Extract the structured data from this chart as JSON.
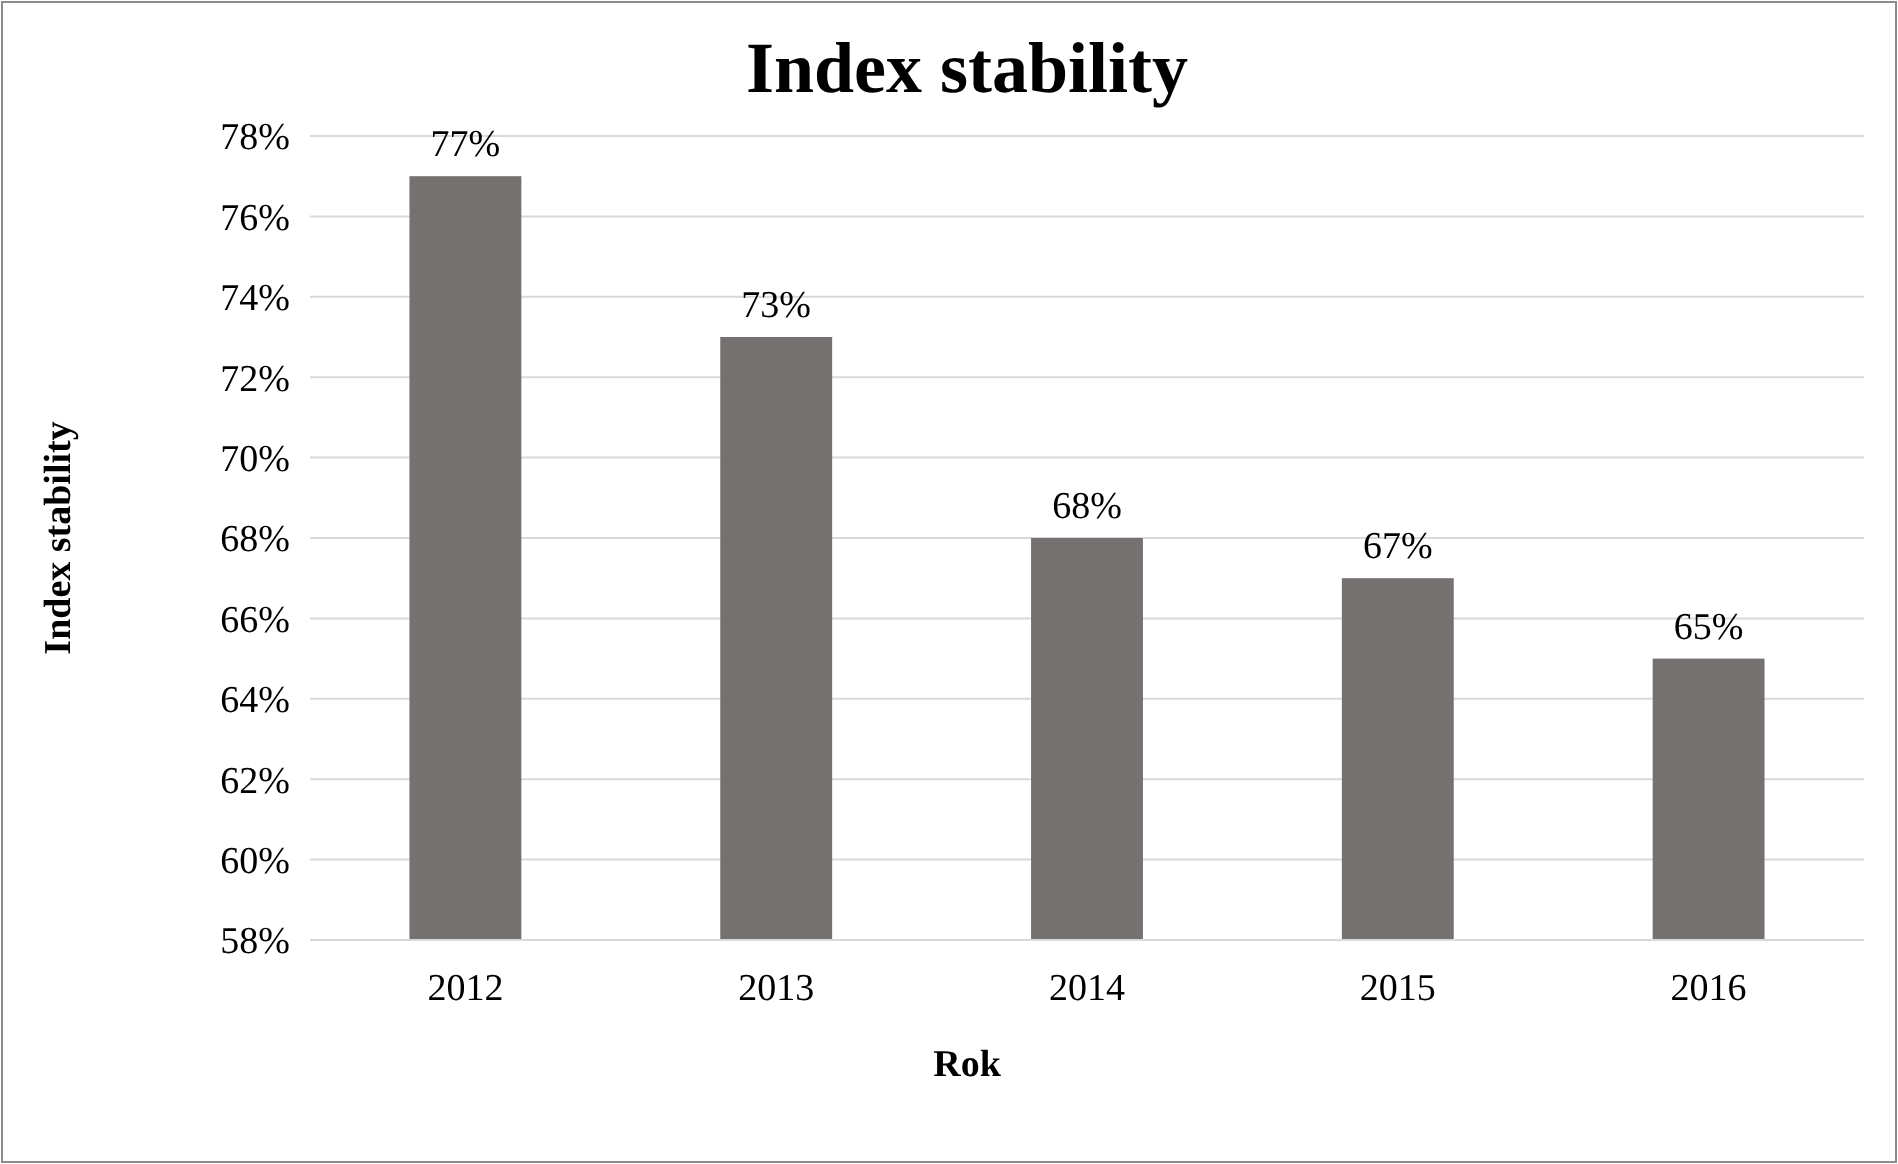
{
  "chart_data": {
    "type": "bar",
    "title": "Index stability",
    "xlabel": "Rok",
    "ylabel": "Index stability",
    "categories": [
      "2012",
      "2013",
      "2014",
      "2015",
      "2016"
    ],
    "values": [
      77,
      73,
      68,
      67,
      65
    ],
    "value_labels": [
      "77%",
      "73%",
      "68%",
      "67%",
      "65%"
    ],
    "color": "#767171",
    "ylim": [
      58,
      78
    ],
    "yticks": [
      {
        "value": 58,
        "label": "58%"
      },
      {
        "value": 60,
        "label": "60%"
      },
      {
        "value": 62,
        "label": "62%"
      },
      {
        "value": 64,
        "label": "64%"
      },
      {
        "value": 66,
        "label": "66%"
      },
      {
        "value": 68,
        "label": "68%"
      },
      {
        "value": 70,
        "label": "70%"
      },
      {
        "value": 72,
        "label": "72%"
      },
      {
        "value": 74,
        "label": "74%"
      },
      {
        "value": 76,
        "label": "76%"
      },
      {
        "value": 78,
        "label": "78%"
      }
    ],
    "grid": "y"
  }
}
